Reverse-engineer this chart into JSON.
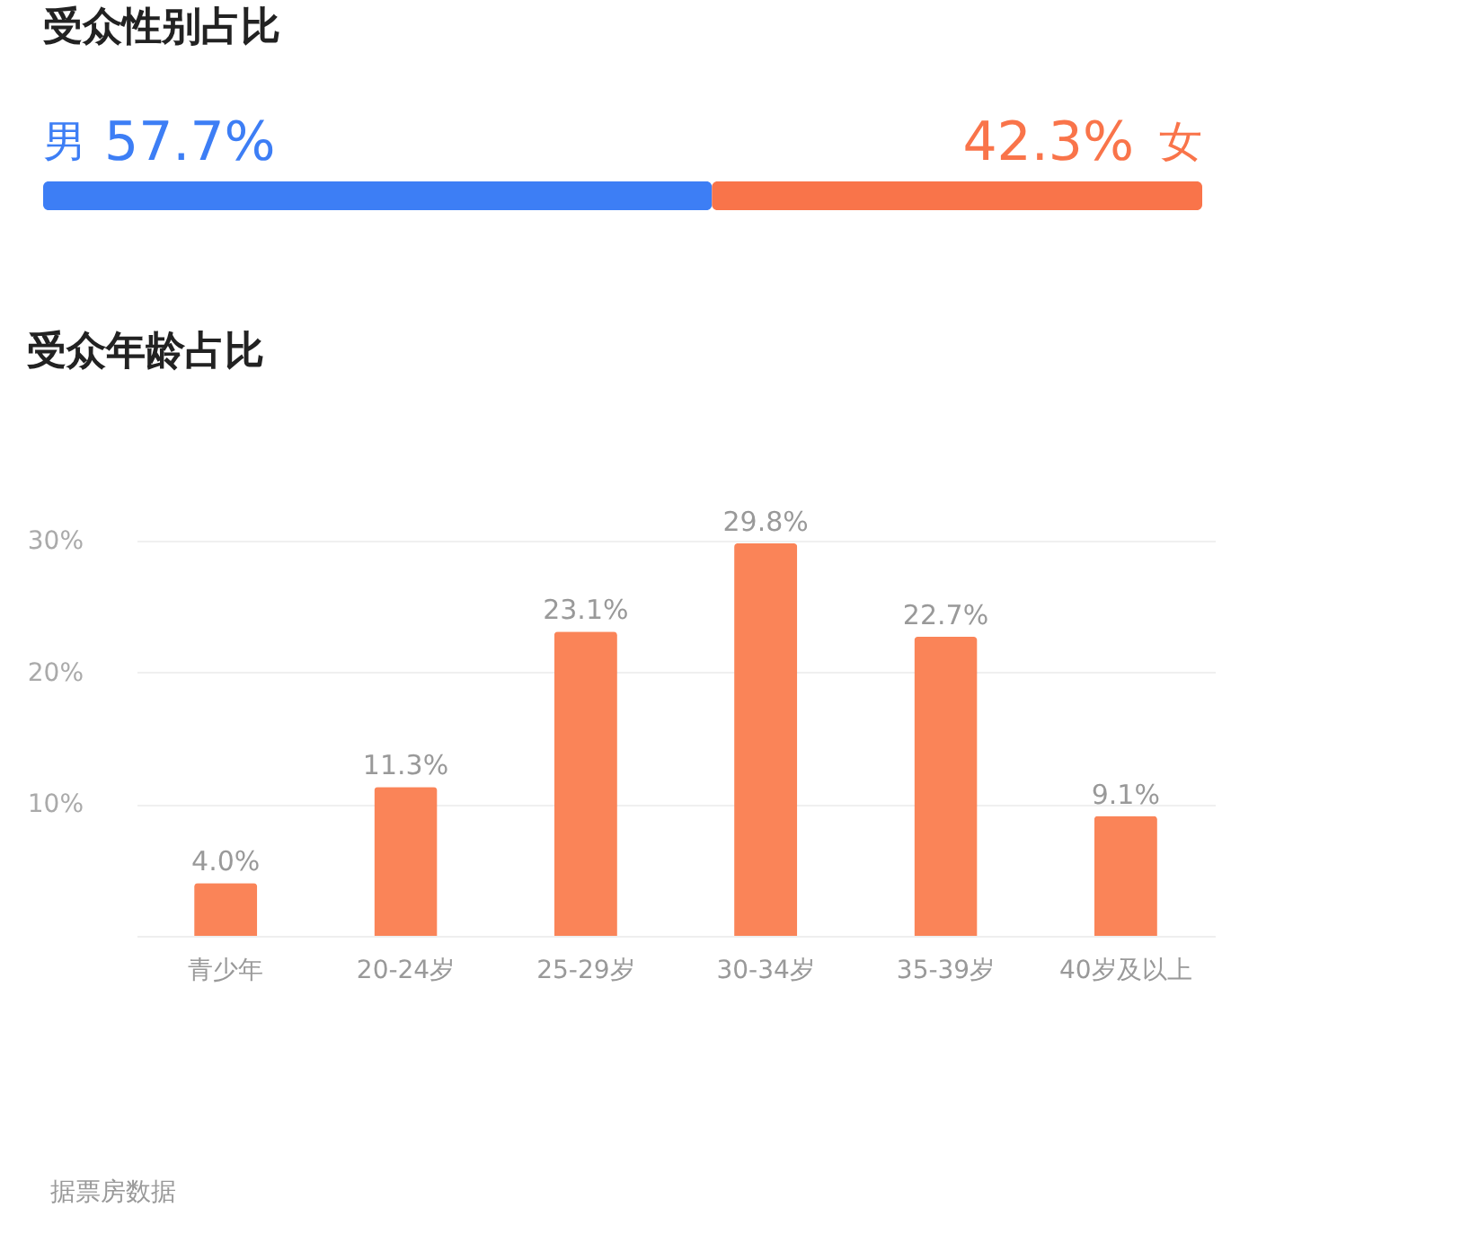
{
  "chart_data": [
    {
      "type": "bar",
      "title": "受众性别占比",
      "orientation": "horizontal",
      "stacked": true,
      "categories": [
        null
      ],
      "series": [
        {
          "name": "男",
          "color": "#3d7ef5",
          "values": [
            57.7
          ],
          "value_labels": [
            "57.7%"
          ]
        },
        {
          "name": "女",
          "color": "#f9744a",
          "values": [
            42.3
          ],
          "value_labels": [
            "42.3%"
          ]
        }
      ]
    },
    {
      "type": "bar",
      "title": "受众年龄占比",
      "categories": [
        "青少年",
        "20-24岁",
        "25-29岁",
        "30-34岁",
        "35-39岁",
        "40岁及以上"
      ],
      "values": [
        4.0,
        11.3,
        23.1,
        29.8,
        22.7,
        9.1
      ],
      "value_labels": [
        "4.0%",
        "11.3%",
        "23.1%",
        "29.8%",
        "22.7%",
        "9.1%"
      ],
      "color": "#fa8458",
      "ylim": [
        0,
        30
      ],
      "yticks": [
        {
          "value": 10,
          "label": "10%"
        },
        {
          "value": 20,
          "label": "20%"
        },
        {
          "value": 30,
          "label": "30%"
        }
      ],
      "grid": "y",
      "annotations": [
        "据票房数据"
      ]
    }
  ]
}
